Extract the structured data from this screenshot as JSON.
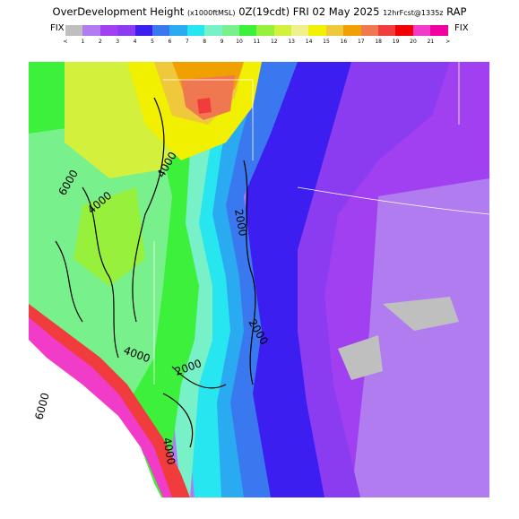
{
  "header": {
    "title_main": "OverDevelopment Height",
    "title_units": "(x1000ftMSL)",
    "title_time": "0Z(19cdt)",
    "title_date": "FRI 02 May 2025",
    "title_fcst": "12hrFcst@1335z",
    "title_model": "RAP",
    "fix_left": "FIX",
    "fix_right": "FIX"
  },
  "colorbar": {
    "labels": [
      "<",
      "1",
      "2",
      "3",
      "4",
      "5",
      "6",
      "7",
      "8",
      "9",
      "10",
      "11",
      "12",
      "13",
      "14",
      "15",
      "16",
      "17",
      "18",
      "19",
      "20",
      "21",
      ">"
    ],
    "colors": [
      "#bfbfbf",
      "#b07cf0",
      "#a040f0",
      "#8c3cf0",
      "#3c1ef0",
      "#3a78f0",
      "#2aaaf0",
      "#28e6f0",
      "#78f0c8",
      "#78f08c",
      "#3cf03c",
      "#96f03c",
      "#d2f03c",
      "#f0f08c",
      "#f0f000",
      "#f0c83c",
      "#f0a000",
      "#f07850",
      "#f03c3c",
      "#f00000",
      "#f03cc8",
      "#f000a0"
    ]
  },
  "map_labels": {
    "contours": [
      "6000",
      "4000",
      "4000",
      "2000",
      "2000",
      "4000",
      "2000",
      "4000",
      "6000"
    ]
  }
}
